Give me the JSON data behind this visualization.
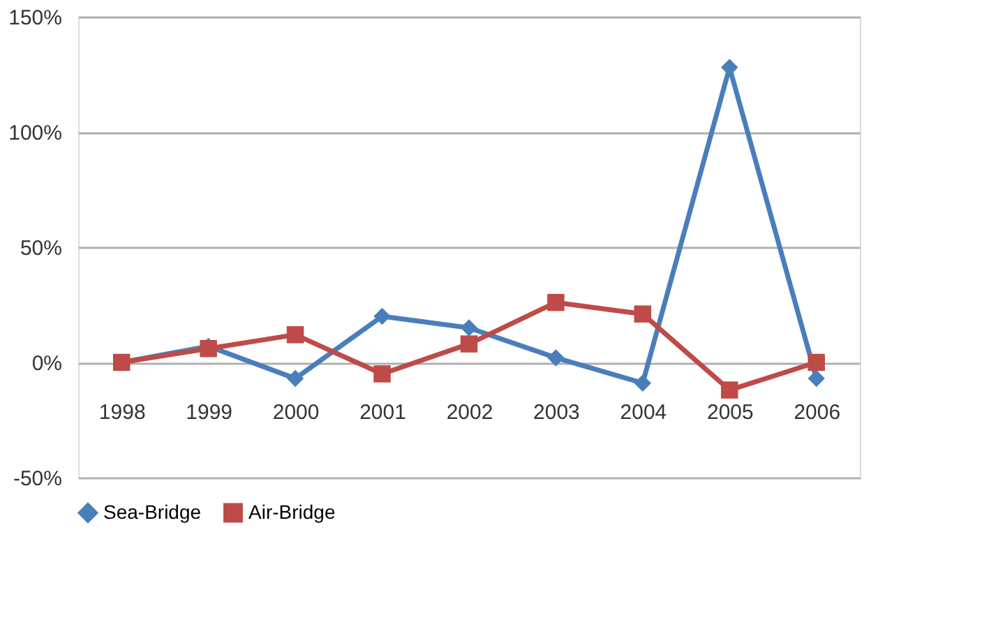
{
  "chart_data": {
    "type": "line",
    "categories": [
      "1998",
      "1999",
      "2000",
      "2001",
      "2002",
      "2003",
      "2004",
      "2005",
      "2006"
    ],
    "series": [
      {
        "name": "Sea-Bridge",
        "color": "#4a7ebb",
        "marker": "diamond",
        "line_style": "solid",
        "values": [
          0,
          7,
          -7,
          20,
          15,
          2,
          -9,
          128,
          -7
        ]
      },
      {
        "name": "Air-Bridge",
        "color": "#be4b48",
        "marker": "square",
        "line_style": "solid",
        "values": [
          0,
          6,
          12,
          -5,
          8,
          26,
          21,
          -12,
          0
        ]
      }
    ],
    "ylim": [
      -50,
      150
    ],
    "yticks": [
      {
        "value": -50,
        "label": "-50%"
      },
      {
        "value": 0,
        "label": "0%"
      },
      {
        "value": 50,
        "label": "50%"
      },
      {
        "value": 100,
        "label": "100%"
      },
      {
        "value": 150,
        "label": "150%"
      }
    ],
    "grid": "y",
    "legend": "bottom"
  }
}
